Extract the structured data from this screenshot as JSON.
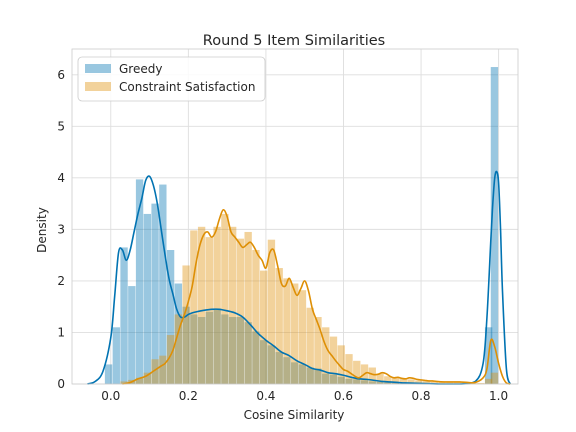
{
  "chart_data": {
    "type": "histogram+kde",
    "title": "Round 5 Item Similarities",
    "xlabel": "Cosine Similarity",
    "ylabel": "Density",
    "xlim": [
      -0.1,
      1.05
    ],
    "ylim": [
      0,
      6.5
    ],
    "xticks": [
      0.0,
      0.2,
      0.4,
      0.6,
      0.8,
      1.0
    ],
    "xtick_labels": [
      "0.0",
      "0.2",
      "0.4",
      "0.6",
      "0.8",
      "1.0"
    ],
    "yticks": [
      0,
      1,
      2,
      3,
      4,
      5,
      6
    ],
    "ytick_labels": [
      "0",
      "1",
      "2",
      "3",
      "4",
      "5",
      "6"
    ],
    "grid": true,
    "legend_position": "upper-left",
    "bin_width": 0.0205,
    "series": [
      {
        "name": "Greedy",
        "color": "#0173b2",
        "bar_alpha": 0.4,
        "bins": [
          [
            -0.005,
            0.38
          ],
          [
            0.015,
            1.1
          ],
          [
            0.035,
            2.65
          ],
          [
            0.055,
            1.9
          ],
          [
            0.075,
            3.97
          ],
          [
            0.095,
            3.3
          ],
          [
            0.115,
            3.5
          ],
          [
            0.135,
            3.87
          ],
          [
            0.155,
            2.6
          ],
          [
            0.175,
            1.95
          ],
          [
            0.195,
            1.5
          ],
          [
            0.215,
            1.35
          ],
          [
            0.235,
            1.3
          ],
          [
            0.255,
            1.4
          ],
          [
            0.275,
            1.45
          ],
          [
            0.295,
            1.35
          ],
          [
            0.315,
            1.3
          ],
          [
            0.335,
            1.3
          ],
          [
            0.355,
            1.2
          ],
          [
            0.375,
            1.02
          ],
          [
            0.395,
            0.85
          ],
          [
            0.415,
            0.75
          ],
          [
            0.435,
            0.62
          ],
          [
            0.455,
            0.52
          ],
          [
            0.475,
            0.42
          ],
          [
            0.495,
            0.38
          ],
          [
            0.515,
            0.32
          ],
          [
            0.535,
            0.3
          ],
          [
            0.555,
            0.2
          ],
          [
            0.575,
            0.18
          ],
          [
            0.595,
            0.14
          ],
          [
            0.615,
            0.1
          ],
          [
            0.635,
            0.09
          ],
          [
            0.655,
            0.07
          ],
          [
            0.675,
            0.05
          ],
          [
            0.695,
            0.04
          ],
          [
            0.715,
            0.03
          ],
          [
            0.735,
            0.02
          ],
          [
            0.975,
            1.1
          ],
          [
            0.99,
            6.15
          ]
        ],
        "kde_x": [
          -0.06,
          -0.04,
          -0.02,
          0.0,
          0.01,
          0.02,
          0.03,
          0.04,
          0.05,
          0.06,
          0.07,
          0.08,
          0.09,
          0.1,
          0.11,
          0.12,
          0.13,
          0.14,
          0.15,
          0.16,
          0.17,
          0.18,
          0.19,
          0.2,
          0.21,
          0.22,
          0.24,
          0.26,
          0.28,
          0.3,
          0.32,
          0.34,
          0.36,
          0.38,
          0.4,
          0.42,
          0.44,
          0.46,
          0.48,
          0.5,
          0.52,
          0.54,
          0.56,
          0.58,
          0.6,
          0.62,
          0.64,
          0.66,
          0.68,
          0.7,
          0.72,
          0.74,
          0.76,
          0.8,
          0.85,
          0.9,
          0.94,
          0.96,
          0.97,
          0.98,
          0.985,
          0.99,
          0.995,
          1.0,
          1.005,
          1.01,
          1.02,
          1.03
        ],
        "kde_y": [
          0.0,
          0.05,
          0.25,
          0.9,
          1.7,
          2.55,
          2.6,
          2.4,
          2.6,
          2.95,
          3.3,
          3.6,
          3.95,
          4.03,
          3.85,
          3.5,
          3.0,
          2.5,
          2.05,
          1.75,
          1.45,
          1.3,
          1.3,
          1.35,
          1.38,
          1.4,
          1.43,
          1.45,
          1.45,
          1.42,
          1.38,
          1.3,
          1.15,
          0.98,
          0.85,
          0.74,
          0.62,
          0.55,
          0.45,
          0.38,
          0.3,
          0.27,
          0.22,
          0.2,
          0.17,
          0.13,
          0.1,
          0.09,
          0.07,
          0.05,
          0.04,
          0.03,
          0.02,
          0.01,
          0.0,
          0.0,
          0.05,
          0.4,
          1.3,
          2.8,
          3.5,
          4.0,
          4.12,
          3.9,
          3.0,
          1.8,
          0.3,
          0.0
        ]
      },
      {
        "name": "Constraint Satisfaction",
        "color": "#de8f05",
        "bar_alpha": 0.4,
        "bins": [
          [
            0.035,
            0.05
          ],
          [
            0.055,
            0.08
          ],
          [
            0.075,
            0.12
          ],
          [
            0.095,
            0.22
          ],
          [
            0.115,
            0.48
          ],
          [
            0.135,
            0.55
          ],
          [
            0.155,
            0.95
          ],
          [
            0.175,
            1.35
          ],
          [
            0.195,
            2.3
          ],
          [
            0.215,
            2.98
          ],
          [
            0.235,
            3.05
          ],
          [
            0.255,
            2.85
          ],
          [
            0.275,
            3.05
          ],
          [
            0.295,
            3.3
          ],
          [
            0.315,
            3.05
          ],
          [
            0.335,
            2.82
          ],
          [
            0.355,
            2.95
          ],
          [
            0.375,
            2.6
          ],
          [
            0.395,
            2.2
          ],
          [
            0.415,
            2.8
          ],
          [
            0.435,
            2.25
          ],
          [
            0.455,
            2.05
          ],
          [
            0.475,
            1.95
          ],
          [
            0.495,
            1.82
          ],
          [
            0.515,
            1.48
          ],
          [
            0.535,
            1.3
          ],
          [
            0.555,
            1.1
          ],
          [
            0.575,
            0.92
          ],
          [
            0.595,
            0.75
          ],
          [
            0.615,
            0.58
          ],
          [
            0.635,
            0.45
          ],
          [
            0.655,
            0.38
          ],
          [
            0.675,
            0.32
          ],
          [
            0.695,
            0.2
          ],
          [
            0.715,
            0.15
          ],
          [
            0.735,
            0.12
          ],
          [
            0.755,
            0.11
          ],
          [
            0.775,
            0.09
          ],
          [
            0.795,
            0.07
          ],
          [
            0.815,
            0.06
          ],
          [
            0.835,
            0.05
          ],
          [
            0.855,
            0.04
          ],
          [
            0.875,
            0.04
          ],
          [
            0.895,
            0.03
          ],
          [
            0.915,
            0.03
          ],
          [
            0.935,
            0.02
          ],
          [
            0.955,
            0.02
          ],
          [
            0.975,
            0.1
          ],
          [
            0.99,
            0.22
          ]
        ],
        "kde_x": [
          0.03,
          0.05,
          0.07,
          0.09,
          0.11,
          0.13,
          0.14,
          0.15,
          0.16,
          0.17,
          0.18,
          0.19,
          0.2,
          0.21,
          0.22,
          0.23,
          0.24,
          0.25,
          0.26,
          0.27,
          0.28,
          0.29,
          0.3,
          0.31,
          0.32,
          0.33,
          0.34,
          0.35,
          0.36,
          0.37,
          0.38,
          0.39,
          0.4,
          0.41,
          0.42,
          0.43,
          0.44,
          0.45,
          0.46,
          0.47,
          0.48,
          0.49,
          0.5,
          0.51,
          0.52,
          0.53,
          0.54,
          0.55,
          0.56,
          0.57,
          0.58,
          0.59,
          0.6,
          0.61,
          0.62,
          0.63,
          0.64,
          0.65,
          0.66,
          0.67,
          0.68,
          0.69,
          0.7,
          0.71,
          0.72,
          0.73,
          0.74,
          0.75,
          0.76,
          0.77,
          0.78,
          0.79,
          0.8,
          0.81,
          0.82,
          0.83,
          0.84,
          0.86,
          0.88,
          0.9,
          0.92,
          0.94,
          0.96,
          0.97,
          0.98,
          0.99,
          1.0,
          1.01,
          1.02,
          1.03
        ],
        "kde_y": [
          0.0,
          0.03,
          0.1,
          0.15,
          0.25,
          0.35,
          0.4,
          0.5,
          0.65,
          0.9,
          1.15,
          1.35,
          1.6,
          1.9,
          2.35,
          2.7,
          2.9,
          2.95,
          2.85,
          2.95,
          3.2,
          3.38,
          3.25,
          2.95,
          2.85,
          2.75,
          2.65,
          2.7,
          2.75,
          2.65,
          2.5,
          2.4,
          2.25,
          2.55,
          2.6,
          2.3,
          1.95,
          1.9,
          2.05,
          1.88,
          1.72,
          1.85,
          2.0,
          1.8,
          1.45,
          1.25,
          1.05,
          0.82,
          0.65,
          0.55,
          0.45,
          0.36,
          0.28,
          0.25,
          0.2,
          0.15,
          0.12,
          0.17,
          0.22,
          0.2,
          0.18,
          0.19,
          0.22,
          0.2,
          0.15,
          0.12,
          0.13,
          0.11,
          0.1,
          0.12,
          0.11,
          0.09,
          0.08,
          0.07,
          0.06,
          0.06,
          0.05,
          0.04,
          0.04,
          0.04,
          0.03,
          0.03,
          0.12,
          0.3,
          0.85,
          0.72,
          0.4,
          0.15,
          0.02,
          0.0
        ]
      }
    ]
  }
}
